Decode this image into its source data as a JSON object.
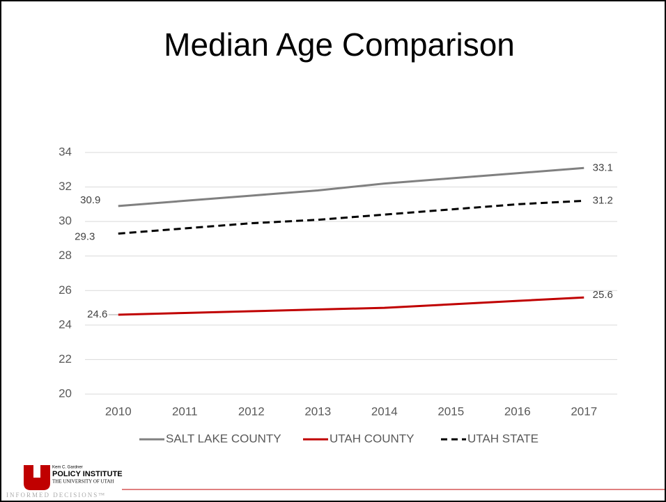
{
  "chart_data": {
    "type": "line",
    "title": "Median Age Comparison",
    "categories": [
      "2010",
      "2011",
      "2012",
      "2013",
      "2014",
      "2015",
      "2016",
      "2017"
    ],
    "series": [
      {
        "name": "SALT LAKE COUNTY",
        "color": "#808080",
        "dash": false,
        "values": [
          30.9,
          31.2,
          31.5,
          31.8,
          32.2,
          32.5,
          32.8,
          33.1
        ]
      },
      {
        "name": "UTAH COUNTY",
        "color": "#c00000",
        "dash": false,
        "values": [
          24.6,
          24.7,
          24.8,
          24.9,
          25.0,
          25.2,
          25.4,
          25.6
        ]
      },
      {
        "name": "UTAH STATE",
        "color": "#000000",
        "dash": true,
        "values": [
          29.3,
          29.6,
          29.9,
          30.1,
          30.4,
          30.7,
          31.0,
          31.2
        ]
      }
    ],
    "ylim": [
      20,
      34
    ],
    "yticks": [
      20,
      22,
      24,
      26,
      28,
      30,
      32,
      34
    ],
    "grid": true,
    "legend": "bottom"
  },
  "logo": {
    "line1": "Kem C. Gardner",
    "line2": "POLICY INSTITUTE",
    "line3": "THE UNIVERSITY OF UTAH",
    "tagline": "INFORMED DECISIONS™"
  }
}
